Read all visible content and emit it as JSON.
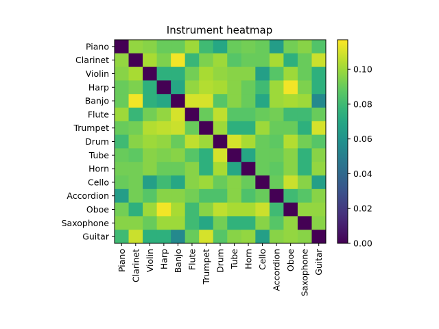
{
  "chart_data": {
    "type": "heatmap",
    "title": "Instrument heatmap",
    "xlabel": "",
    "ylabel": "",
    "colormap": "viridis",
    "vmin": 0.0,
    "vmax": 0.117,
    "colorbar_ticks": [
      "0.00",
      "0.02",
      "0.04",
      "0.06",
      "0.08",
      "0.10"
    ],
    "colorbar_tick_values": [
      0.0,
      0.02,
      0.04,
      0.06,
      0.08,
      0.1
    ],
    "rows": [
      "Piano",
      "Clarinet",
      "Violin",
      "Harp",
      "Banjo",
      "Flute",
      "Trumpet",
      "Drum",
      "Tube",
      "Horn",
      "Cello",
      "Accordion",
      "Oboe",
      "Saxophone",
      "Guitar"
    ],
    "columns": [
      "Piano",
      "Clarinet",
      "Violin",
      "Harp",
      "Banjo",
      "Flute",
      "Trumpet",
      "Drum",
      "Tube",
      "Horn",
      "Cello",
      "Accordion",
      "Oboe",
      "Saxophone",
      "Guitar"
    ],
    "values": [
      [
        0.0,
        0.098,
        0.096,
        0.09,
        0.09,
        0.1,
        0.08,
        0.07,
        0.09,
        0.092,
        0.09,
        0.065,
        0.092,
        0.096,
        0.085
      ],
      [
        0.098,
        0.0,
        0.102,
        0.094,
        0.115,
        0.078,
        0.094,
        0.1,
        0.086,
        0.09,
        0.09,
        0.102,
        0.075,
        0.09,
        0.108
      ],
      [
        0.096,
        0.102,
        0.0,
        0.075,
        0.075,
        0.092,
        0.102,
        0.098,
        0.096,
        0.096,
        0.066,
        0.086,
        0.1,
        0.09,
        0.075
      ],
      [
        0.09,
        0.094,
        0.075,
        0.0,
        0.07,
        0.098,
        0.104,
        0.102,
        0.096,
        0.09,
        0.08,
        0.1,
        0.115,
        0.094,
        0.075
      ],
      [
        0.09,
        0.115,
        0.075,
        0.07,
        0.0,
        0.11,
        0.11,
        0.086,
        0.096,
        0.09,
        0.07,
        0.1,
        0.102,
        0.1,
        0.055
      ],
      [
        0.1,
        0.078,
        0.092,
        0.098,
        0.11,
        0.0,
        0.09,
        0.106,
        0.086,
        0.086,
        0.09,
        0.092,
        0.08,
        0.08,
        0.09
      ],
      [
        0.09,
        0.092,
        0.104,
        0.106,
        0.108,
        0.09,
        0.0,
        0.1,
        0.075,
        0.075,
        0.1,
        0.09,
        0.09,
        0.075,
        0.11
      ],
      [
        0.08,
        0.096,
        0.1,
        0.098,
        0.09,
        0.106,
        0.1,
        0.0,
        0.11,
        0.102,
        0.09,
        0.088,
        0.104,
        0.092,
        0.086
      ],
      [
        0.09,
        0.088,
        0.096,
        0.094,
        0.096,
        0.086,
        0.075,
        0.11,
        0.0,
        0.07,
        0.09,
        0.09,
        0.096,
        0.076,
        0.096
      ],
      [
        0.092,
        0.092,
        0.096,
        0.09,
        0.09,
        0.096,
        0.075,
        0.102,
        0.07,
        0.0,
        0.09,
        0.088,
        0.096,
        0.076,
        0.098
      ],
      [
        0.09,
        0.092,
        0.066,
        0.08,
        0.07,
        0.096,
        0.1,
        0.09,
        0.096,
        0.09,
        0.0,
        0.09,
        0.108,
        0.096,
        0.066
      ],
      [
        0.065,
        0.092,
        0.086,
        0.096,
        0.096,
        0.092,
        0.084,
        0.084,
        0.096,
        0.084,
        0.09,
        0.0,
        0.08,
        0.086,
        0.096
      ],
      [
        0.092,
        0.075,
        0.1,
        0.115,
        0.102,
        0.08,
        0.096,
        0.106,
        0.102,
        0.102,
        0.108,
        0.08,
        0.0,
        0.098,
        0.098
      ],
      [
        0.096,
        0.096,
        0.09,
        0.1,
        0.1,
        0.08,
        0.07,
        0.092,
        0.076,
        0.076,
        0.096,
        0.086,
        0.098,
        0.0,
        0.096
      ],
      [
        0.08,
        0.108,
        0.075,
        0.075,
        0.055,
        0.09,
        0.11,
        0.086,
        0.096,
        0.098,
        0.066,
        0.096,
        0.098,
        0.096,
        0.0
      ]
    ]
  }
}
